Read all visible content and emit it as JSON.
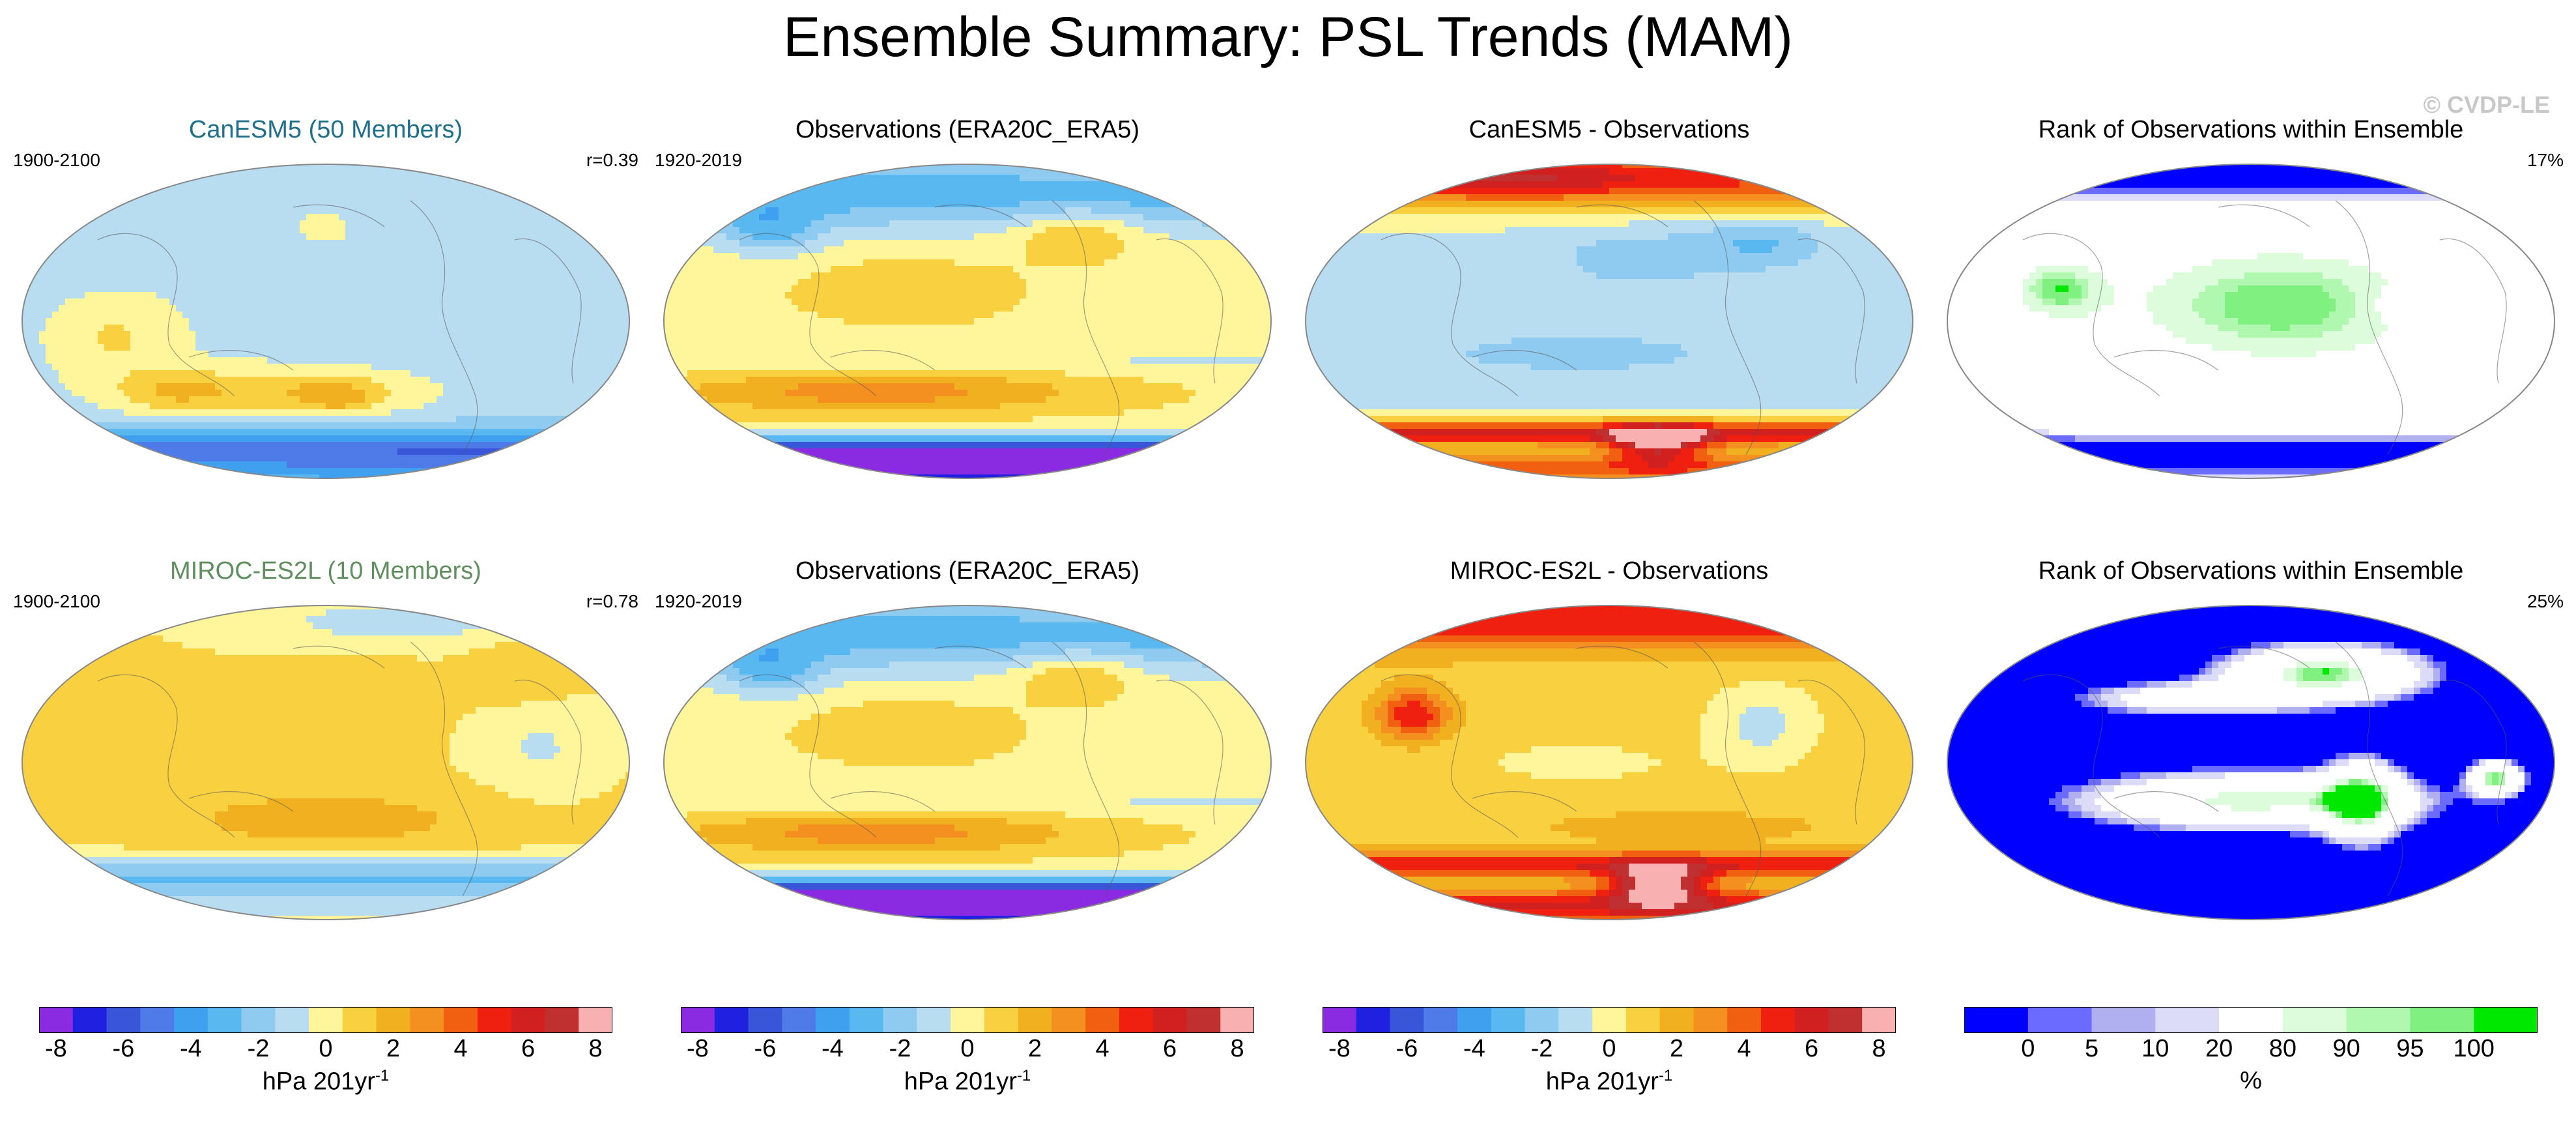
{
  "title": "Ensemble Summary: PSL Trends (MAM)",
  "watermark": "© CVDP-LE",
  "colors": {
    "model1_title": "#1f6f8b",
    "model2_title": "#5f8f5f"
  },
  "chart_data": [
    {
      "type": "heatmap",
      "row": 1,
      "title": "CanESM5 (50 Members)",
      "left_label": "1900-2100",
      "right_label": "r=0.39",
      "pattern": "model_canesm"
    },
    {
      "type": "heatmap",
      "row": 1,
      "title": "Observations (ERA20C_ERA5)",
      "left_label": "1920-2019",
      "right_label": "",
      "pattern": "obs"
    },
    {
      "type": "heatmap",
      "row": 1,
      "title": "CanESM5 - Observations",
      "left_label": "",
      "right_label": "",
      "pattern": "diff_canesm"
    },
    {
      "type": "heatmap",
      "row": 1,
      "title": "Rank of Observations within Ensemble",
      "left_label": "",
      "right_label": "17%",
      "pattern": "rank1"
    },
    {
      "type": "heatmap",
      "row": 2,
      "title": "MIROC-ES2L (10 Members)",
      "left_label": "1900-2100",
      "right_label": "r=0.78",
      "pattern": "model_miroc"
    },
    {
      "type": "heatmap",
      "row": 2,
      "title": "Observations (ERA20C_ERA5)",
      "left_label": "1920-2019",
      "right_label": "",
      "pattern": "obs"
    },
    {
      "type": "heatmap",
      "row": 2,
      "title": "MIROC-ES2L - Observations",
      "left_label": "",
      "right_label": "",
      "pattern": "diff_miroc"
    },
    {
      "type": "heatmap",
      "row": 2,
      "title": "Rank of Observations within Ensemble",
      "left_label": "",
      "right_label": "25%",
      "pattern": "rank2"
    }
  ],
  "colorbars": [
    {
      "kind": "psl",
      "unit": "hPa 201yr",
      "unit_sup": "-1",
      "tick_labels": [
        "-8",
        "-6",
        "-4",
        "-2",
        "0",
        "2",
        "4",
        "6",
        "8"
      ],
      "colors": [
        "#8a2be2",
        "#2020e0",
        "#3a56d8",
        "#4f7be8",
        "#3fa0f0",
        "#5ab8f0",
        "#8fcbf0",
        "#b8dcf0",
        "#fff59a",
        "#f8d040",
        "#f0b020",
        "#f39020",
        "#f06010",
        "#f02010",
        "#d02020",
        "#c03030",
        "#f8b0b0"
      ]
    },
    {
      "kind": "psl",
      "unit": "hPa 201yr",
      "unit_sup": "-1",
      "tick_labels": [
        "-8",
        "-6",
        "-4",
        "-2",
        "0",
        "2",
        "4",
        "6",
        "8"
      ],
      "colors": [
        "#8a2be2",
        "#2020e0",
        "#3a56d8",
        "#4f7be8",
        "#3fa0f0",
        "#5ab8f0",
        "#8fcbf0",
        "#b8dcf0",
        "#fff59a",
        "#f8d040",
        "#f0b020",
        "#f39020",
        "#f06010",
        "#f02010",
        "#d02020",
        "#c03030",
        "#f8b0b0"
      ]
    },
    {
      "kind": "psl",
      "unit": "hPa 201yr",
      "unit_sup": "-1",
      "tick_labels": [
        "-8",
        "-6",
        "-4",
        "-2",
        "0",
        "2",
        "4",
        "6",
        "8"
      ],
      "colors": [
        "#8a2be2",
        "#2020e0",
        "#3a56d8",
        "#4f7be8",
        "#3fa0f0",
        "#5ab8f0",
        "#8fcbf0",
        "#b8dcf0",
        "#fff59a",
        "#f8d040",
        "#f0b020",
        "#f39020",
        "#f06010",
        "#f02010",
        "#d02020",
        "#c03030",
        "#f8b0b0"
      ]
    },
    {
      "kind": "rank",
      "unit": "%",
      "unit_sup": "",
      "tick_labels": [
        "0",
        "5",
        "10",
        "20",
        "80",
        "90",
        "95",
        "100"
      ],
      "colors": [
        "#0000ff",
        "#6b6bff",
        "#b0b0f0",
        "#dcdcf8",
        "#ffffff",
        "#dcfcdc",
        "#b0f8b0",
        "#80f080",
        "#00e800"
      ]
    }
  ]
}
